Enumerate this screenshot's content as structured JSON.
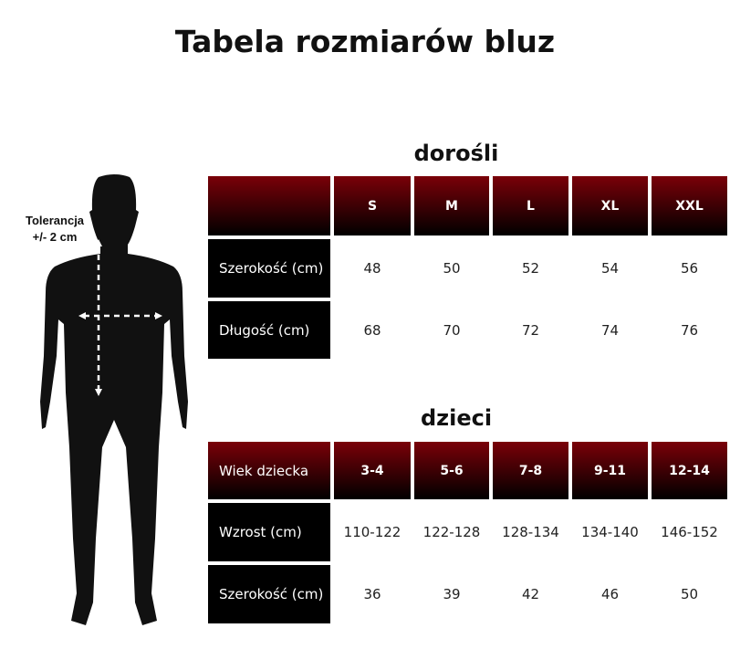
{
  "title": "Tabela rozmiarów bluz",
  "tolerance": {
    "line1": "Tolerancja",
    "line2": "+/- 2 cm"
  },
  "adults": {
    "heading": "dorośli",
    "corner": "",
    "sizes": [
      "S",
      "M",
      "L",
      "XL",
      "XXL"
    ],
    "rows": [
      {
        "label": "Szerokość (cm)",
        "values": [
          "48",
          "50",
          "52",
          "54",
          "56"
        ]
      },
      {
        "label": "Długość (cm)",
        "values": [
          "68",
          "70",
          "72",
          "74",
          "76"
        ]
      }
    ]
  },
  "kids": {
    "heading": "dzieci",
    "corner": "Wiek dziecka",
    "sizes": [
      "3-4",
      "5-6",
      "7-8",
      "9-11",
      "12-14"
    ],
    "rows": [
      {
        "label": "Wzrost (cm)",
        "values": [
          "110-122",
          "122-128",
          "128-134",
          "134-140",
          "146-152"
        ]
      },
      {
        "label": "Szerokość (cm)",
        "values": [
          "36",
          "39",
          "42",
          "46",
          "50"
        ]
      }
    ]
  },
  "colors": {
    "header_top": "#7a0008",
    "header_bottom": "#000000",
    "label_bg": "#000000"
  }
}
